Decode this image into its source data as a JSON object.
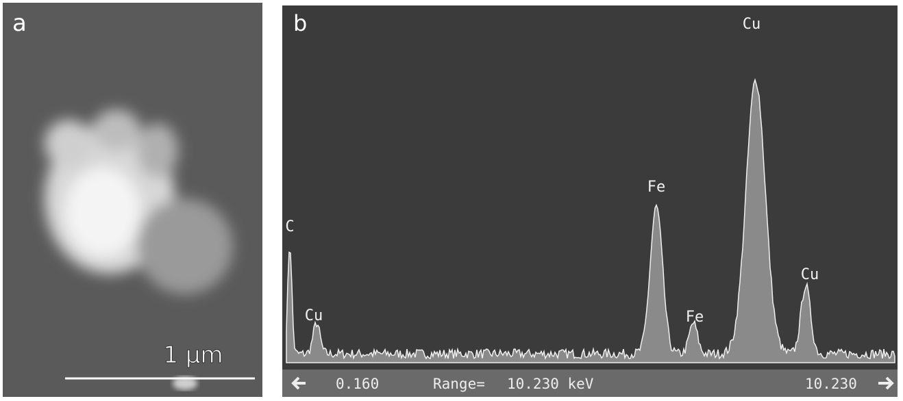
{
  "panel_a": {
    "label": "a",
    "scale_bar": "1 µm"
  },
  "panel_b": {
    "label": "b",
    "peak_labels": [
      "C",
      "Cu",
      "Fe",
      "Fe",
      "Cu",
      "Cu"
    ],
    "footer": {
      "start": "0.160",
      "range": "Range=",
      "range_value": "10.230 keV",
      "end": "10.230"
    }
  }
}
